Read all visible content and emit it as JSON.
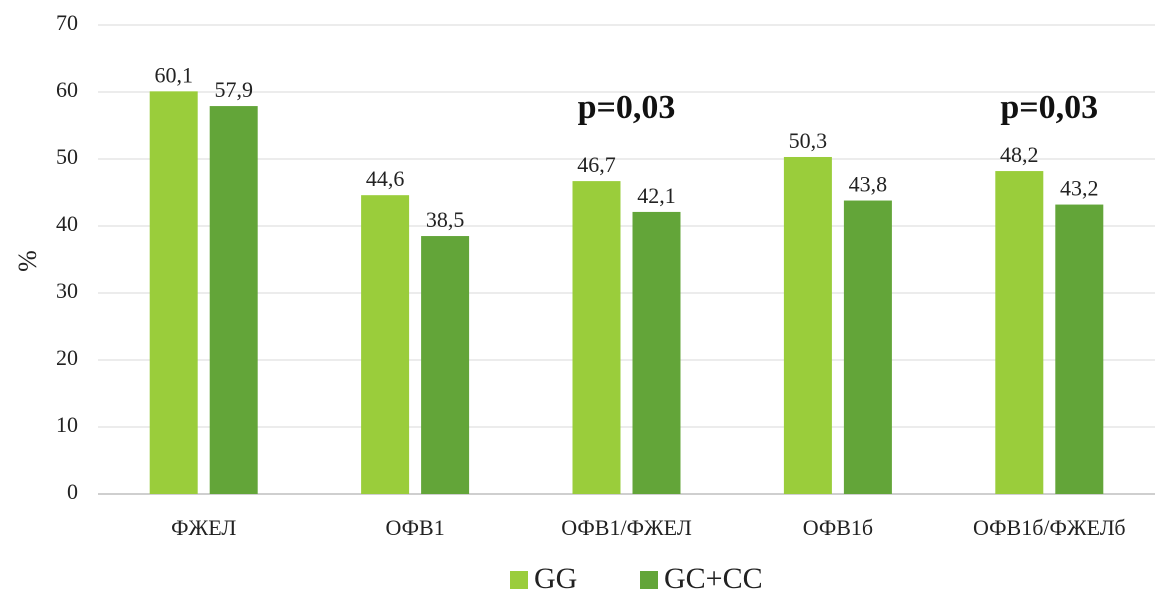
{
  "chart_data": {
    "type": "bar",
    "categories": [
      "ФЖЕЛ",
      "ОФВ1",
      "ОФВ1/ФЖЕЛ",
      "ОФВ1б",
      "ОФВ1б/ФЖЕЛб"
    ],
    "series": [
      {
        "name": "GG",
        "color": "#9acd3b",
        "values": [
          60.1,
          44.6,
          46.7,
          50.3,
          48.2
        ],
        "labels": [
          "60,1",
          "44,6",
          "46,7",
          "50,3",
          "48,2"
        ]
      },
      {
        "name": "GC+CC",
        "color": "#63a539",
        "values": [
          57.9,
          38.5,
          42.1,
          43.8,
          43.2
        ],
        "labels": [
          "57,9",
          "38,5",
          "42,1",
          "43,8",
          "43,2"
        ]
      }
    ],
    "ylabel": "%",
    "ylim": [
      0,
      70
    ],
    "yticks": [
      0,
      10,
      20,
      30,
      40,
      50,
      60,
      70
    ],
    "grid": true,
    "legend": "bottom-center",
    "annotations": [
      {
        "category_index": 2,
        "text": "p=0,03"
      },
      {
        "category_index": 4,
        "text": "p=0,03"
      }
    ]
  }
}
